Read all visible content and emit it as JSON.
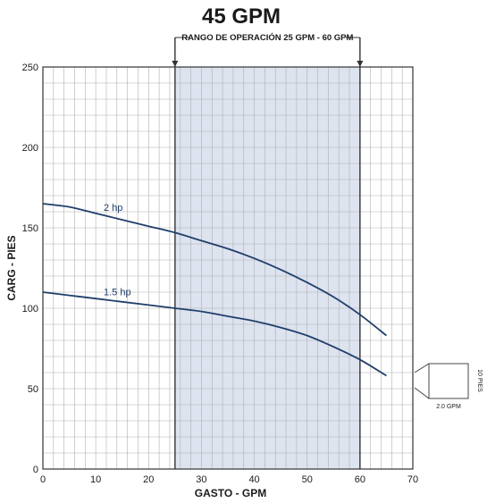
{
  "title": "45 GPM",
  "operating_range_label": "RANGO DE OPERACIÓN 25 GPM - 60 GPM",
  "colors": {
    "curve": "#1f3f6b",
    "shade": "#dde3ef",
    "grid": "#b0b0b0",
    "border": "#333333"
  },
  "scale_box": {
    "width_label": "2.0 GPM",
    "height_label": "10 PIES"
  },
  "chart_data": {
    "type": "line",
    "xlabel": "GASTO - GPM",
    "ylabel": "CARG - PIES",
    "xlim": [
      0,
      70
    ],
    "ylim": [
      0,
      250
    ],
    "x_ticks": [
      0,
      10,
      20,
      30,
      40,
      50,
      60,
      70
    ],
    "y_ticks": [
      0,
      50,
      100,
      150,
      200,
      250
    ],
    "x_minor_step": 2,
    "y_minor_step": 10,
    "grid": true,
    "operating_range": [
      25,
      60
    ],
    "series": [
      {
        "name": "2 hp",
        "x": [
          0,
          5,
          10,
          15,
          20,
          25,
          30,
          35,
          40,
          45,
          50,
          55,
          60,
          65
        ],
        "y": [
          165,
          163,
          159,
          155,
          151,
          147,
          142,
          137,
          131,
          124,
          116,
          107,
          96,
          83
        ]
      },
      {
        "name": "1.5 hp",
        "x": [
          0,
          5,
          10,
          15,
          20,
          25,
          30,
          35,
          40,
          45,
          50,
          55,
          60,
          65
        ],
        "y": [
          110,
          108,
          106,
          104,
          102,
          100,
          98,
          95,
          92,
          88,
          83,
          76,
          68,
          58
        ]
      }
    ]
  }
}
